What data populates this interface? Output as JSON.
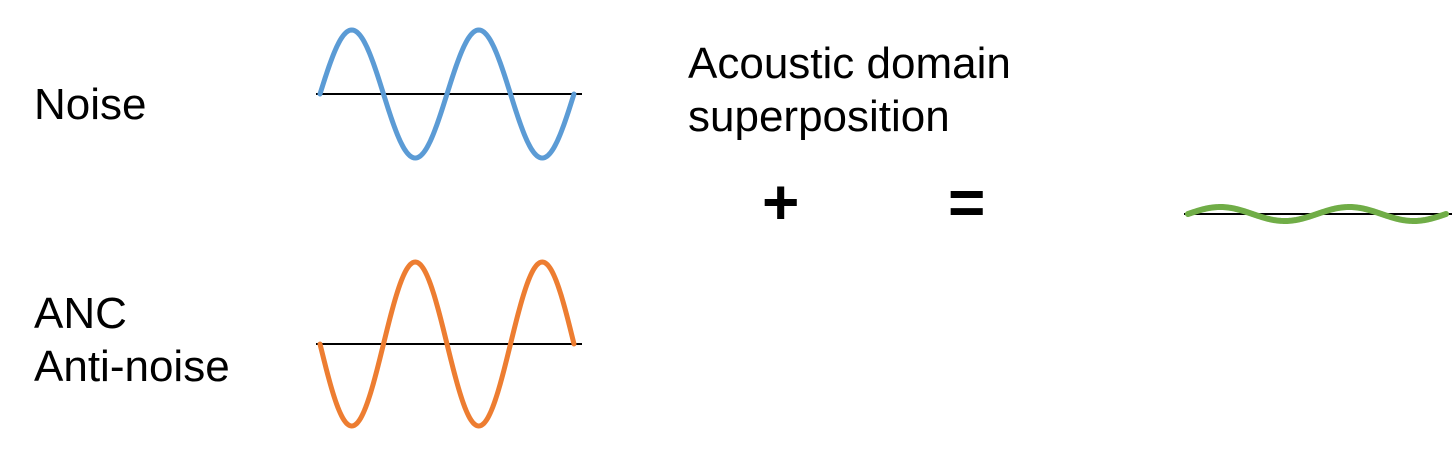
{
  "labels": {
    "noise": "Noise",
    "anc_line1": "ANC",
    "anc_line2": "Anti-noise",
    "superposition_line1": "Acoustic domain",
    "superposition_line2": "superposition",
    "plus": "+",
    "equals": "="
  },
  "waves": [
    {
      "name": "noise-wave",
      "color": "#5b9bd5",
      "cycles": 2,
      "phase": "positive",
      "amplitude": 1.0
    },
    {
      "name": "anti-noise-wave",
      "color": "#ed7d31",
      "cycles": 2,
      "phase": "inverted",
      "amplitude": 1.0
    },
    {
      "name": "residual-wave",
      "color": "#70ad47",
      "cycles": 2,
      "phase": "positive",
      "amplitude": 0.1
    }
  ]
}
